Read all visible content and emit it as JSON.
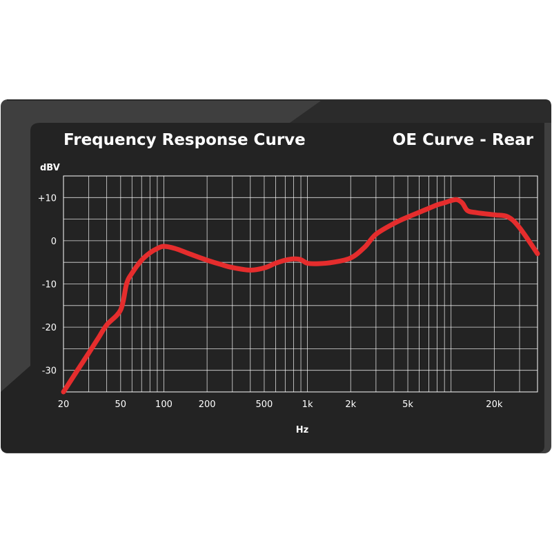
{
  "chart_data": {
    "type": "line",
    "title": "Frequency Response Curve",
    "subtitle": "OE Curve - Rear",
    "xlabel": "Hz",
    "ylabel": "dBV",
    "x_scale": "log",
    "xlim": [
      20,
      40000
    ],
    "ylim": [
      -35,
      15
    ],
    "grid": true,
    "x_ticks": [
      {
        "value": 20,
        "label": "20"
      },
      {
        "value": 50,
        "label": "50"
      },
      {
        "value": 100,
        "label": "100"
      },
      {
        "value": 200,
        "label": "200"
      },
      {
        "value": 500,
        "label": "500"
      },
      {
        "value": 1000,
        "label": "1k"
      },
      {
        "value": 2000,
        "label": "2k"
      },
      {
        "value": 5000,
        "label": "5k"
      },
      {
        "value": 20000,
        "label": "20k"
      }
    ],
    "y_ticks": [
      {
        "value": 10,
        "label": "+10"
      },
      {
        "value": 0,
        "label": "0"
      },
      {
        "value": -10,
        "label": "-10"
      },
      {
        "value": -20,
        "label": "-20"
      },
      {
        "value": -30,
        "label": "-30"
      }
    ],
    "series": [
      {
        "color": "#e52d2d",
        "x": [
          20,
          25,
          30,
          35,
          40,
          50,
          55,
          60,
          70,
          80,
          90,
          100,
          120,
          150,
          200,
          250,
          300,
          400,
          500,
          600,
          700,
          800,
          900,
          1000,
          1200,
          1500,
          2000,
          2500,
          3000,
          4000,
          5000,
          7000,
          8000,
          9000,
          10000,
          11000,
          12000,
          13000,
          15000,
          20000,
          25000,
          30000,
          40000
        ],
        "y": [
          -35,
          -30,
          -26,
          -22.5,
          -19.5,
          -16,
          -10,
          -7.5,
          -4.5,
          -2.8,
          -1.8,
          -1.3,
          -1.8,
          -3,
          -4.5,
          -5.5,
          -6.2,
          -6.8,
          -6.3,
          -5.2,
          -4.5,
          -4.2,
          -4.4,
          -5.2,
          -5.3,
          -5.0,
          -4.0,
          -1.5,
          1.5,
          4.0,
          5.5,
          7.5,
          8.3,
          8.8,
          9.3,
          9.5,
          8.7,
          7.0,
          6.5,
          6.0,
          5.5,
          3.0,
          -3.0
        ]
      }
    ]
  }
}
